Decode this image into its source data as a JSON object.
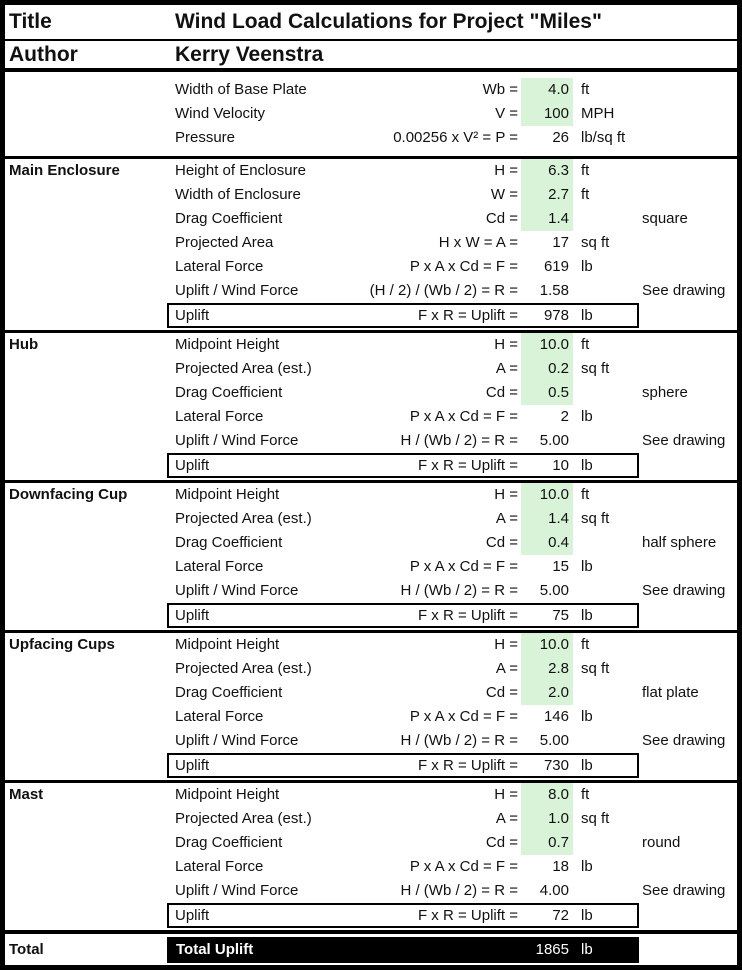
{
  "colors": {
    "input_cell_green": "#d8f3d8",
    "total_bar_background": "#000000",
    "total_bar_text": "#ffffff",
    "border": "#000000"
  },
  "header": {
    "title_label": "Title",
    "title": "Wind Load Calculations for Project \"Miles\"",
    "author_label": "Author",
    "author": "Kerry Veenstra"
  },
  "params": {
    "rows": [
      {
        "label": "Width of Base Plate",
        "formula": "Wb =",
        "value": "4.0",
        "unit": "ft"
      },
      {
        "label": "Wind Velocity",
        "formula": "V =",
        "value": "100",
        "unit": "MPH"
      },
      {
        "label": "Pressure",
        "formula": "0.00256 x V² = P =",
        "value": "26",
        "unit": "lb/sq ft"
      }
    ]
  },
  "sections": [
    {
      "name": "Main Enclosure",
      "rows": [
        {
          "label": "Height of Enclosure",
          "formula": "H =",
          "value": "6.3",
          "unit": "ft"
        },
        {
          "label": "Width of Enclosure",
          "formula": "W =",
          "value": "2.7",
          "unit": "ft"
        },
        {
          "label": "Drag Coefficient",
          "formula": "Cd =",
          "value": "1.4",
          "note": "square"
        },
        {
          "label": "Projected Area",
          "formula": "H x W = A =",
          "value": "17",
          "unit": "sq ft"
        },
        {
          "label": "Lateral Force",
          "formula": "P x A x Cd = F =",
          "value": "619",
          "unit": "lb"
        },
        {
          "label": "Uplift / Wind Force",
          "formula": "(H / 2) / (Wb / 2) = R =",
          "value": "1.58",
          "note": "See drawing"
        }
      ],
      "uplift": {
        "label": "Uplift",
        "formula": "F x R = Uplift =",
        "value": "978",
        "unit": "lb"
      }
    },
    {
      "name": "Hub",
      "rows": [
        {
          "label": "Midpoint Height",
          "formula": "H =",
          "value": "10.0",
          "unit": "ft"
        },
        {
          "label": "Projected Area (est.)",
          "formula": "A =",
          "value": "0.2",
          "unit": "sq ft"
        },
        {
          "label": "Drag Coefficient",
          "formula": "Cd =",
          "value": "0.5",
          "note": "sphere"
        },
        {
          "label": "Lateral Force",
          "formula": "P x A x Cd = F =",
          "value": "2",
          "unit": "lb"
        },
        {
          "label": "Uplift / Wind Force",
          "formula": "H / (Wb / 2) = R =",
          "value": "5.00",
          "note": "See drawing"
        }
      ],
      "uplift": {
        "label": "Uplift",
        "formula": "F x R = Uplift =",
        "value": "10",
        "unit": "lb"
      }
    },
    {
      "name": "Downfacing Cup",
      "rows": [
        {
          "label": "Midpoint Height",
          "formula": "H =",
          "value": "10.0",
          "unit": "ft"
        },
        {
          "label": "Projected Area (est.)",
          "formula": "A =",
          "value": "1.4",
          "unit": "sq ft"
        },
        {
          "label": "Drag Coefficient",
          "formula": "Cd =",
          "value": "0.4",
          "note": "half sphere"
        },
        {
          "label": "Lateral Force",
          "formula": "P x A x Cd = F =",
          "value": "15",
          "unit": "lb"
        },
        {
          "label": "Uplift / Wind Force",
          "formula": "H / (Wb / 2) = R =",
          "value": "5.00",
          "note": "See drawing"
        }
      ],
      "uplift": {
        "label": "Uplift",
        "formula": "F x R = Uplift =",
        "value": "75",
        "unit": "lb"
      }
    },
    {
      "name": "Upfacing Cups",
      "rows": [
        {
          "label": "Midpoint Height",
          "formula": "H =",
          "value": "10.0",
          "unit": "ft"
        },
        {
          "label": "Projected Area (est.)",
          "formula": "A =",
          "value": "2.8",
          "unit": "sq ft"
        },
        {
          "label": "Drag Coefficient",
          "formula": "Cd =",
          "value": "2.0",
          "note": "flat plate"
        },
        {
          "label": "Lateral Force",
          "formula": "P x A x Cd = F =",
          "value": "146",
          "unit": "lb"
        },
        {
          "label": "Uplift / Wind Force",
          "formula": "H / (Wb / 2) = R =",
          "value": "5.00",
          "note": "See drawing"
        }
      ],
      "uplift": {
        "label": "Uplift",
        "formula": "F x R = Uplift =",
        "value": "730",
        "unit": "lb"
      }
    },
    {
      "name": "Mast",
      "rows": [
        {
          "label": "Midpoint Height",
          "formula": "H =",
          "value": "8.0",
          "unit": "ft"
        },
        {
          "label": "Projected Area (est.)",
          "formula": "A =",
          "value": "1.0",
          "unit": "sq ft"
        },
        {
          "label": "Drag Coefficient",
          "formula": "Cd =",
          "value": "0.7",
          "note": "round"
        },
        {
          "label": "Lateral Force",
          "formula": "P x A x Cd = F =",
          "value": "18",
          "unit": "lb"
        },
        {
          "label": "Uplift / Wind Force",
          "formula": "H / (Wb / 2) = R =",
          "value": "4.00",
          "note": "See drawing"
        }
      ],
      "uplift": {
        "label": "Uplift",
        "formula": "F x R = Uplift =",
        "value": "72",
        "unit": "lb"
      }
    }
  ],
  "total": {
    "label": "Total",
    "bar_label": "Total Uplift",
    "value": "1865",
    "unit": "lb"
  }
}
